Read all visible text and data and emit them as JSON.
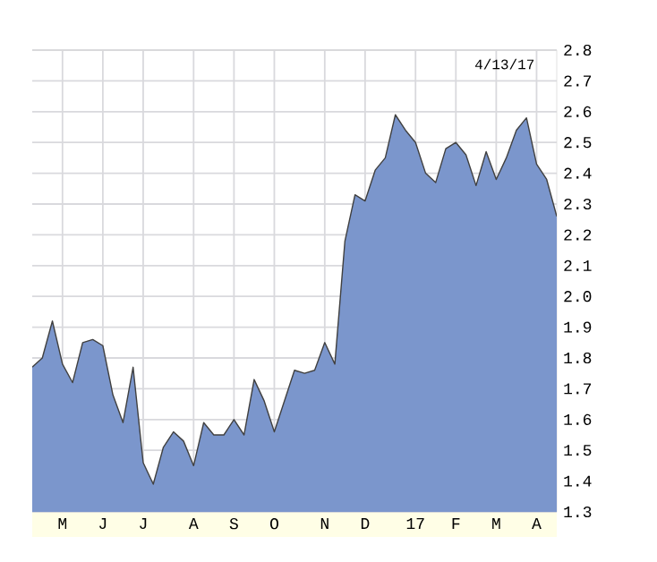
{
  "chart_data": {
    "type": "area",
    "annotations": [
      "4/13/17"
    ],
    "categories": [
      null,
      null,
      null,
      "M",
      null,
      null,
      null,
      "J",
      null,
      null,
      null,
      "J",
      null,
      null,
      null,
      null,
      "A",
      null,
      null,
      null,
      "S",
      null,
      null,
      null,
      "O",
      null,
      null,
      null,
      null,
      "N",
      null,
      null,
      null,
      "D",
      null,
      null,
      null,
      null,
      "17",
      null,
      null,
      null,
      "F",
      null,
      null,
      null,
      "M",
      null,
      null,
      null,
      "A",
      null,
      null
    ],
    "series": [
      {
        "color": "#7b96cc",
        "values": [
          1.77,
          1.8,
          1.92,
          1.78,
          1.72,
          1.85,
          1.86,
          1.84,
          1.68,
          1.59,
          1.77,
          1.46,
          1.39,
          1.51,
          1.56,
          1.53,
          1.45,
          1.59,
          1.55,
          1.55,
          1.6,
          1.55,
          1.73,
          1.66,
          1.56,
          1.66,
          1.76,
          1.75,
          1.76,
          1.85,
          1.78,
          2.18,
          2.33,
          2.31,
          2.41,
          2.45,
          2.59,
          2.54,
          2.5,
          2.4,
          2.37,
          2.48,
          2.5,
          2.46,
          2.36,
          2.47,
          2.38,
          2.45,
          2.54,
          2.58,
          2.43,
          2.38,
          2.26
        ]
      }
    ],
    "ylim": [
      1.3,
      2.8
    ],
    "yticks": [
      1.3,
      1.4,
      1.5,
      1.6,
      1.7,
      1.8,
      1.9,
      {
        "value": 2.0,
        "label": "2.0"
      },
      2.1,
      2.2,
      2.3,
      2.4,
      2.5,
      2.6,
      2.7,
      2.8
    ],
    "grid": true
  }
}
